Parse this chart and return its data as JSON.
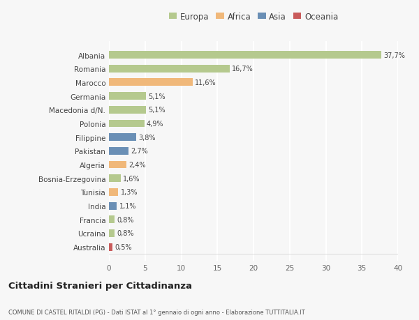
{
  "categories": [
    "Albania",
    "Romania",
    "Marocco",
    "Germania",
    "Macedonia d/N.",
    "Polonia",
    "Filippine",
    "Pakistan",
    "Algeria",
    "Bosnia-Erzegovina",
    "Tunisia",
    "India",
    "Francia",
    "Ucraina",
    "Australia"
  ],
  "values": [
    37.7,
    16.7,
    11.6,
    5.1,
    5.1,
    4.9,
    3.8,
    2.7,
    2.4,
    1.6,
    1.3,
    1.1,
    0.8,
    0.8,
    0.5
  ],
  "labels": [
    "37,7%",
    "16,7%",
    "11,6%",
    "5,1%",
    "5,1%",
    "4,9%",
    "3,8%",
    "2,7%",
    "2,4%",
    "1,6%",
    "1,3%",
    "1,1%",
    "0,8%",
    "0,8%",
    "0,5%"
  ],
  "regions": [
    "Europa",
    "Europa",
    "Africa",
    "Europa",
    "Europa",
    "Europa",
    "Asia",
    "Asia",
    "Africa",
    "Europa",
    "Africa",
    "Asia",
    "Europa",
    "Europa",
    "Oceania"
  ],
  "region_colors": {
    "Europa": "#b5c98e",
    "Africa": "#f0b87a",
    "Asia": "#6a8fb5",
    "Oceania": "#c95b5b"
  },
  "legend_order": [
    "Europa",
    "Africa",
    "Asia",
    "Oceania"
  ],
  "xlim": [
    0,
    40
  ],
  "xticks": [
    0,
    5,
    10,
    15,
    20,
    25,
    30,
    35,
    40
  ],
  "title": "Cittadini Stranieri per Cittadinanza",
  "subtitle": "COMUNE DI CASTEL RITALDI (PG) - Dati ISTAT al 1° gennaio di ogni anno - Elaborazione TUTTITALIA.IT",
  "bg_color": "#f7f7f7",
  "grid_color": "#ffffff",
  "bar_height": 0.55
}
